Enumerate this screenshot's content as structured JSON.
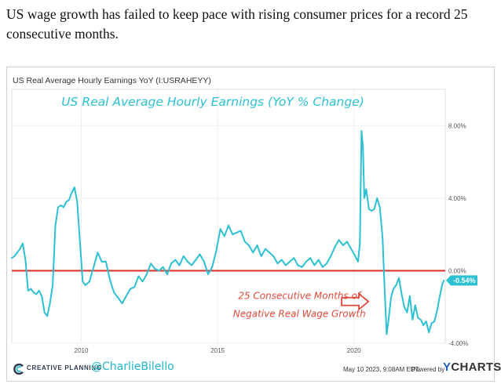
{
  "headline": "US wage growth has failed to keep pace with rising consumer prices for a record 25 consecutive months.",
  "chart_title": "US Real Average Hourly Earnings YoY (I:USRAHEYY)",
  "footer": {
    "brand": "CREATIVE PLANNING",
    "handle": "@CharlieBilello",
    "timestamp": "May 10 2023, 9:08AM EDT.",
    "powered_by": "Powered by",
    "provider_y": "Y",
    "provider_rest": "CHARTS"
  },
  "colors": {
    "series": "#2cc0d2",
    "zero_line": "#d93a30",
    "handle": "#22b6c9",
    "annotation": "#e04a3a",
    "last_value_badge": "#2cc0d2"
  },
  "chart_data": {
    "type": "line",
    "title": "US Real Average Hourly Earnings (YoY % Change)",
    "ylim": [
      -4,
      10
    ],
    "yticks": [
      8,
      4,
      0,
      -4
    ],
    "ytick_labels": [
      "8.00%",
      "4.00%",
      "0.00%",
      "-4.00%"
    ],
    "xlim": [
      2007.45,
      2023.35
    ],
    "xticks": [
      2010,
      2015,
      2020
    ],
    "xtick_labels": [
      "2010",
      "2015",
      "2020"
    ],
    "grid": true,
    "reference_line": 0,
    "last_value_label": "-0.54%",
    "annotation": "25 Consecutive Months of Negative Real Wage Growth",
    "annotation_lines": [
      "25 Consecutive Months of",
      "Negative Real Wage Growth"
    ],
    "series": [
      {
        "x": [
          2007.45,
          2007.55,
          2007.65,
          2007.75,
          2007.85,
          2007.95,
          2008.05,
          2008.15,
          2008.25,
          2008.35,
          2008.45,
          2008.55,
          2008.65,
          2008.75,
          2008.85,
          2008.95,
          2009.05,
          2009.15,
          2009.25,
          2009.35,
          2009.45,
          2009.55,
          2009.65,
          2009.75,
          2009.85,
          2009.95,
          2010.05,
          2010.15,
          2010.3,
          2010.45,
          2010.6,
          2010.75,
          2010.9,
          2011.05,
          2011.2,
          2011.35,
          2011.5,
          2011.65,
          2011.8,
          2011.95,
          2012.1,
          2012.25,
          2012.4,
          2012.55,
          2012.7,
          2012.85,
          2013.0,
          2013.15,
          2013.3,
          2013.45,
          2013.6,
          2013.75,
          2013.9,
          2014.05,
          2014.2,
          2014.35,
          2014.5,
          2014.65,
          2014.8,
          2014.95,
          2015.1,
          2015.25,
          2015.4,
          2015.55,
          2015.7,
          2015.85,
          2016.0,
          2016.15,
          2016.3,
          2016.45,
          2016.6,
          2016.75,
          2016.9,
          2017.05,
          2017.2,
          2017.35,
          2017.5,
          2017.65,
          2017.8,
          2017.95,
          2018.1,
          2018.25,
          2018.4,
          2018.55,
          2018.7,
          2018.85,
          2019.0,
          2019.15,
          2019.3,
          2019.45,
          2019.6,
          2019.75,
          2019.9,
          2020.05,
          2020.15,
          2020.22,
          2020.28,
          2020.33,
          2020.38,
          2020.45,
          2020.55,
          2020.65,
          2020.75,
          2020.85,
          2020.95,
          2021.05,
          2021.12,
          2021.2,
          2021.28,
          2021.36,
          2021.45,
          2021.55,
          2021.65,
          2021.75,
          2021.85,
          2021.95,
          2022.05,
          2022.15,
          2022.25,
          2022.35,
          2022.45,
          2022.55,
          2022.65,
          2022.75,
          2022.85,
          2022.95,
          2023.05,
          2023.15,
          2023.25,
          2023.3
        ],
        "y": [
          0.7,
          0.8,
          1.0,
          1.2,
          1.5,
          0.6,
          -1.1,
          -1.0,
          -1.2,
          -1.3,
          -1.1,
          -1.4,
          -2.3,
          -2.5,
          -1.8,
          -0.8,
          2.5,
          3.5,
          3.6,
          3.5,
          3.8,
          3.9,
          4.3,
          4.6,
          3.8,
          1.6,
          -0.6,
          -0.8,
          -0.6,
          0.2,
          1.0,
          0.5,
          0.5,
          -0.5,
          -1.2,
          -1.5,
          -1.8,
          -1.4,
          -1.0,
          -0.9,
          -0.3,
          -0.6,
          -0.2,
          0.4,
          0.1,
          0.0,
          0.2,
          -0.2,
          0.4,
          0.6,
          0.3,
          0.8,
          0.5,
          0.3,
          0.6,
          0.9,
          0.5,
          -0.2,
          0.2,
          1.1,
          2.3,
          1.9,
          2.5,
          2.0,
          2.1,
          2.2,
          1.6,
          1.4,
          1.0,
          1.4,
          0.8,
          1.2,
          1.0,
          0.8,
          0.4,
          0.6,
          0.3,
          0.5,
          0.7,
          0.3,
          0.2,
          0.5,
          0.7,
          0.3,
          0.6,
          0.2,
          0.4,
          0.8,
          1.3,
          1.7,
          1.4,
          1.6,
          1.2,
          0.8,
          0.5,
          1.5,
          7.7,
          6.8,
          4.0,
          4.5,
          3.4,
          3.3,
          3.4,
          4.0,
          3.5,
          1.8,
          -0.8,
          -3.5,
          -2.6,
          -1.5,
          -1.0,
          -0.8,
          -0.4,
          -1.3,
          -2.0,
          -2.3,
          -1.4,
          -2.7,
          -1.9,
          -2.6,
          -2.7,
          -3.0,
          -2.8,
          -3.4,
          -2.9,
          -2.8,
          -2.2,
          -1.4,
          -0.7,
          -0.54
        ]
      }
    ]
  }
}
